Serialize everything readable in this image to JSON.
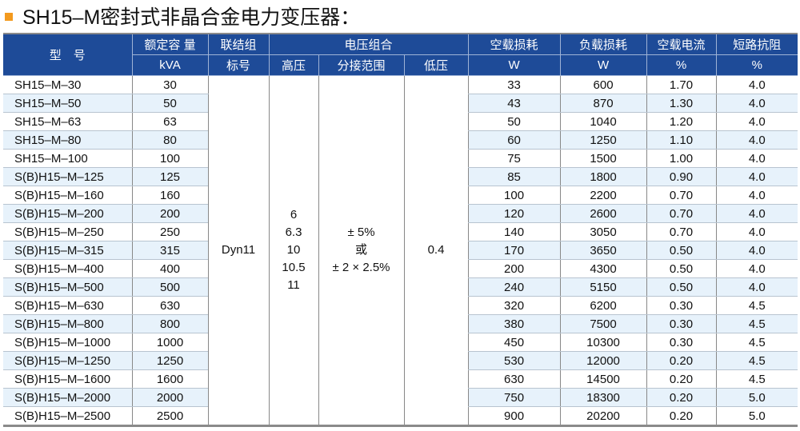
{
  "title": "SH15–M密封式非晶合金电力变压器：",
  "accent": "#f39a1e",
  "header_color": "#1e4b98",
  "headers": {
    "model": "型　号",
    "capacity": "额定容 量",
    "capacity_unit": "kVA",
    "group": "联结组",
    "group2": "标号",
    "voltage": "电压组合",
    "hv": "高压",
    "tap": "分接范围",
    "lv": "低压",
    "noload": "空载损耗",
    "noload_unit": "W",
    "load": "负载损耗",
    "load_unit": "W",
    "current": "空载电流",
    "current_unit": "%",
    "imp": "短路抗阻",
    "imp_unit": "%"
  },
  "merged": {
    "group": "Dyn11",
    "hv": [
      "6",
      "6.3",
      "10",
      "10.5",
      "11"
    ],
    "tap": [
      "± 5%",
      "或",
      "± 2 × 2.5%"
    ],
    "lv": "0.4"
  },
  "rows": [
    [
      "SH15–M–30",
      "30",
      "33",
      "600",
      "1.70",
      "4.0"
    ],
    [
      "SH15–M–50",
      "50",
      "43",
      "870",
      "1.30",
      "4.0"
    ],
    [
      "SH15–M–63",
      "63",
      "50",
      "1040",
      "1.20",
      "4.0"
    ],
    [
      "SH15–M–80",
      "80",
      "60",
      "1250",
      "1.10",
      "4.0"
    ],
    [
      "SH15–M–100",
      "100",
      "75",
      "1500",
      "1.00",
      "4.0"
    ],
    [
      "S(B)H15–M–125",
      "125",
      "85",
      "1800",
      "0.90",
      "4.0"
    ],
    [
      "S(B)H15–M–160",
      "160",
      "100",
      "2200",
      "0.70",
      "4.0"
    ],
    [
      "S(B)H15–M–200",
      "200",
      "120",
      "2600",
      "0.70",
      "4.0"
    ],
    [
      "S(B)H15–M–250",
      "250",
      "140",
      "3050",
      "0.70",
      "4.0"
    ],
    [
      "S(B)H15–M–315",
      "315",
      "170",
      "3650",
      "0.50",
      "4.0"
    ],
    [
      "S(B)H15–M–400",
      "400",
      "200",
      "4300",
      "0.50",
      "4.0"
    ],
    [
      "S(B)H15–M–500",
      "500",
      "240",
      "5150",
      "0.50",
      "4.0"
    ],
    [
      "S(B)H15–M–630",
      "630",
      "320",
      "6200",
      "0.30",
      "4.5"
    ],
    [
      "S(B)H15–M–800",
      "800",
      "380",
      "7500",
      "0.30",
      "4.5"
    ],
    [
      "S(B)H15–M–1000",
      "1000",
      "450",
      "10300",
      "0.30",
      "4.5"
    ],
    [
      "S(B)H15–M–1250",
      "1250",
      "530",
      "12000",
      "0.20",
      "4.5"
    ],
    [
      "S(B)H15–M–1600",
      "1600",
      "630",
      "14500",
      "0.20",
      "4.5"
    ],
    [
      "S(B)H15–M–2000",
      "2000",
      "750",
      "18300",
      "0.20",
      "5.0"
    ],
    [
      "S(B)H15–M–2500",
      "2500",
      "900",
      "20200",
      "0.20",
      "5.0"
    ]
  ]
}
